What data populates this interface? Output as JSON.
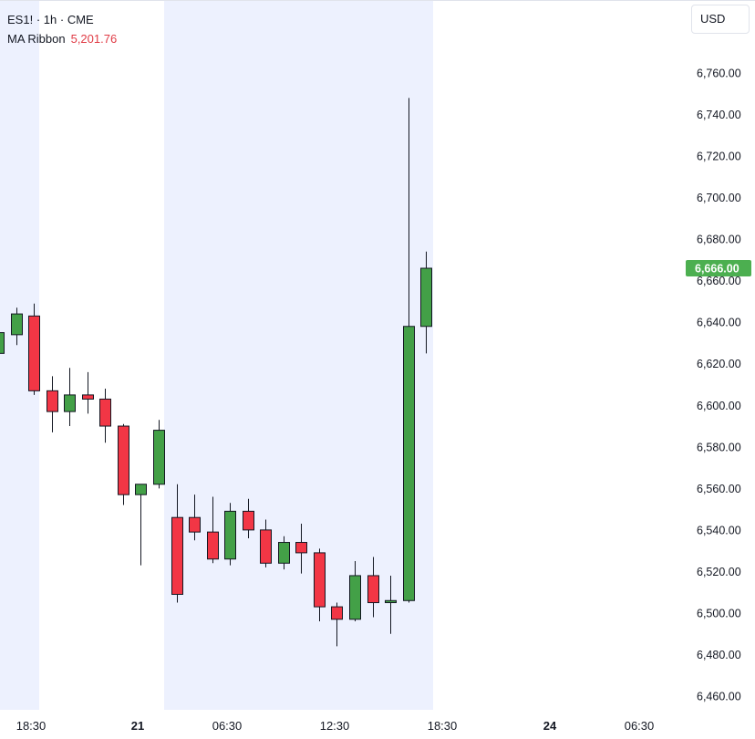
{
  "legend": {
    "symbol": "ES1!",
    "separator1": "·",
    "interval": "1h",
    "separator2": "·",
    "exchange": "CME",
    "indicator_name": "MA Ribbon",
    "indicator_value": "5,201.76"
  },
  "currency": "USD",
  "colors": {
    "up": "#43a047",
    "down": "#f23645",
    "wick": "#131722",
    "session_shade": "#edf1fe",
    "last_price_bg": "#4caf50"
  },
  "chart_data": {
    "type": "candlestick",
    "symbol": "ES1!",
    "interval": "1h",
    "exchange": "CME",
    "currency": "USD",
    "y_ticks": [
      "6,760.00",
      "6,740.00",
      "6,720.00",
      "6,700.00",
      "6,680.00",
      "6,660.00",
      "6,640.00",
      "6,620.00",
      "6,600.00",
      "6,580.00",
      "6,560.00",
      "6,540.00",
      "6,520.00",
      "6,500.00",
      "6,480.00",
      "6,460.00"
    ],
    "last_price": "6,666.00",
    "x_labels": [
      {
        "text": "18:30",
        "bold": false
      },
      {
        "text": "21",
        "bold": true
      },
      {
        "text": "06:30",
        "bold": false
      },
      {
        "text": "12:30",
        "bold": false
      },
      {
        "text": "18:30",
        "bold": false
      },
      {
        "text": "24",
        "bold": true
      },
      {
        "text": "06:30",
        "bold": false
      }
    ],
    "candles": [
      {
        "o": 6625,
        "h": 6637,
        "l": 6623,
        "c": 6635
      },
      {
        "o": 6634,
        "h": 6647,
        "l": 6629,
        "c": 6644
      },
      {
        "o": 6643,
        "h": 6649,
        "l": 6605,
        "c": 6607
      },
      {
        "o": 6607,
        "h": 6614,
        "l": 6587,
        "c": 6597
      },
      {
        "o": 6597,
        "h": 6618,
        "l": 6590,
        "c": 6605
      },
      {
        "o": 6605,
        "h": 6616,
        "l": 6596,
        "c": 6603
      },
      {
        "o": 6603,
        "h": 6608,
        "l": 6582,
        "c": 6590
      },
      {
        "o": 6590,
        "h": 6591,
        "l": 6552,
        "c": 6557
      },
      {
        "o": 6557,
        "h": 6562,
        "l": 6523,
        "c": 6562
      },
      {
        "o": 6562,
        "h": 6593,
        "l": 6560,
        "c": 6588
      },
      {
        "o": 6546,
        "h": 6562,
        "l": 6505,
        "c": 6509
      },
      {
        "o": 6546,
        "h": 6557,
        "l": 6535,
        "c": 6539
      },
      {
        "o": 6539,
        "h": 6556,
        "l": 6524,
        "c": 6526
      },
      {
        "o": 6526,
        "h": 6553,
        "l": 6523,
        "c": 6549
      },
      {
        "o": 6549,
        "h": 6555,
        "l": 6536,
        "c": 6540
      },
      {
        "o": 6540,
        "h": 6545,
        "l": 6522,
        "c": 6524
      },
      {
        "o": 6524,
        "h": 6537,
        "l": 6521,
        "c": 6534
      },
      {
        "o": 6534,
        "h": 6543,
        "l": 6519,
        "c": 6529
      },
      {
        "o": 6529,
        "h": 6531,
        "l": 6496,
        "c": 6503
      },
      {
        "o": 6503,
        "h": 6505,
        "l": 6484,
        "c": 6497
      },
      {
        "o": 6497,
        "h": 6525,
        "l": 6496,
        "c": 6518
      },
      {
        "o": 6518,
        "h": 6527,
        "l": 6498,
        "c": 6505
      },
      {
        "o": 6505,
        "h": 6518,
        "l": 6490,
        "c": 6506
      },
      {
        "o": 6506,
        "h": 6748,
        "l": 6505,
        "c": 6638
      },
      {
        "o": 6638,
        "h": 6674,
        "l": 6625,
        "c": 6666
      }
    ]
  }
}
